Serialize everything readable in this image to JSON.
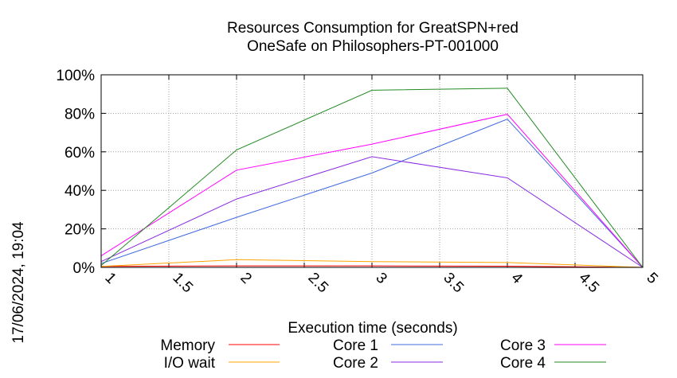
{
  "chart_data": {
    "type": "line",
    "title": "Resources Consumption for GreatSPN+red",
    "subtitle": "OneSafe on Philosophers-PT-001000",
    "xlabel": "Execution time (seconds)",
    "ylabel": "",
    "side_label": "17/06/2024, 19:04",
    "xlim": [
      1,
      5
    ],
    "ylim": [
      0,
      100
    ],
    "x_ticks": [
      "1",
      "1.5",
      "2",
      "2.5",
      "3",
      "3.5",
      "4",
      "4.5",
      "5"
    ],
    "y_ticks": [
      "0%",
      "20%",
      "40%",
      "60%",
      "80%",
      "100%"
    ],
    "grid": true,
    "legend_position": "bottom",
    "x": [
      1,
      2,
      3,
      4,
      5
    ],
    "series": [
      {
        "name": "Memory",
        "color": "#ff0000",
        "values": [
          0.5,
          0.8,
          0.8,
          0.6,
          0
        ]
      },
      {
        "name": "I/O wait",
        "color": "#ffa500",
        "values": [
          0.5,
          4,
          3,
          2.5,
          0
        ]
      },
      {
        "name": "Core 1",
        "color": "#4169e1",
        "values": [
          2,
          26,
          49,
          77,
          0
        ]
      },
      {
        "name": "Core 2",
        "color": "#8a2be2",
        "values": [
          3,
          35.5,
          57.5,
          46.5,
          0
        ]
      },
      {
        "name": "Core 3",
        "color": "#ff00ff",
        "values": [
          6,
          50.5,
          64,
          79.5,
          0
        ]
      },
      {
        "name": "Core 4",
        "color": "#228b22",
        "values": [
          1,
          61,
          92,
          93,
          0
        ]
      }
    ]
  }
}
